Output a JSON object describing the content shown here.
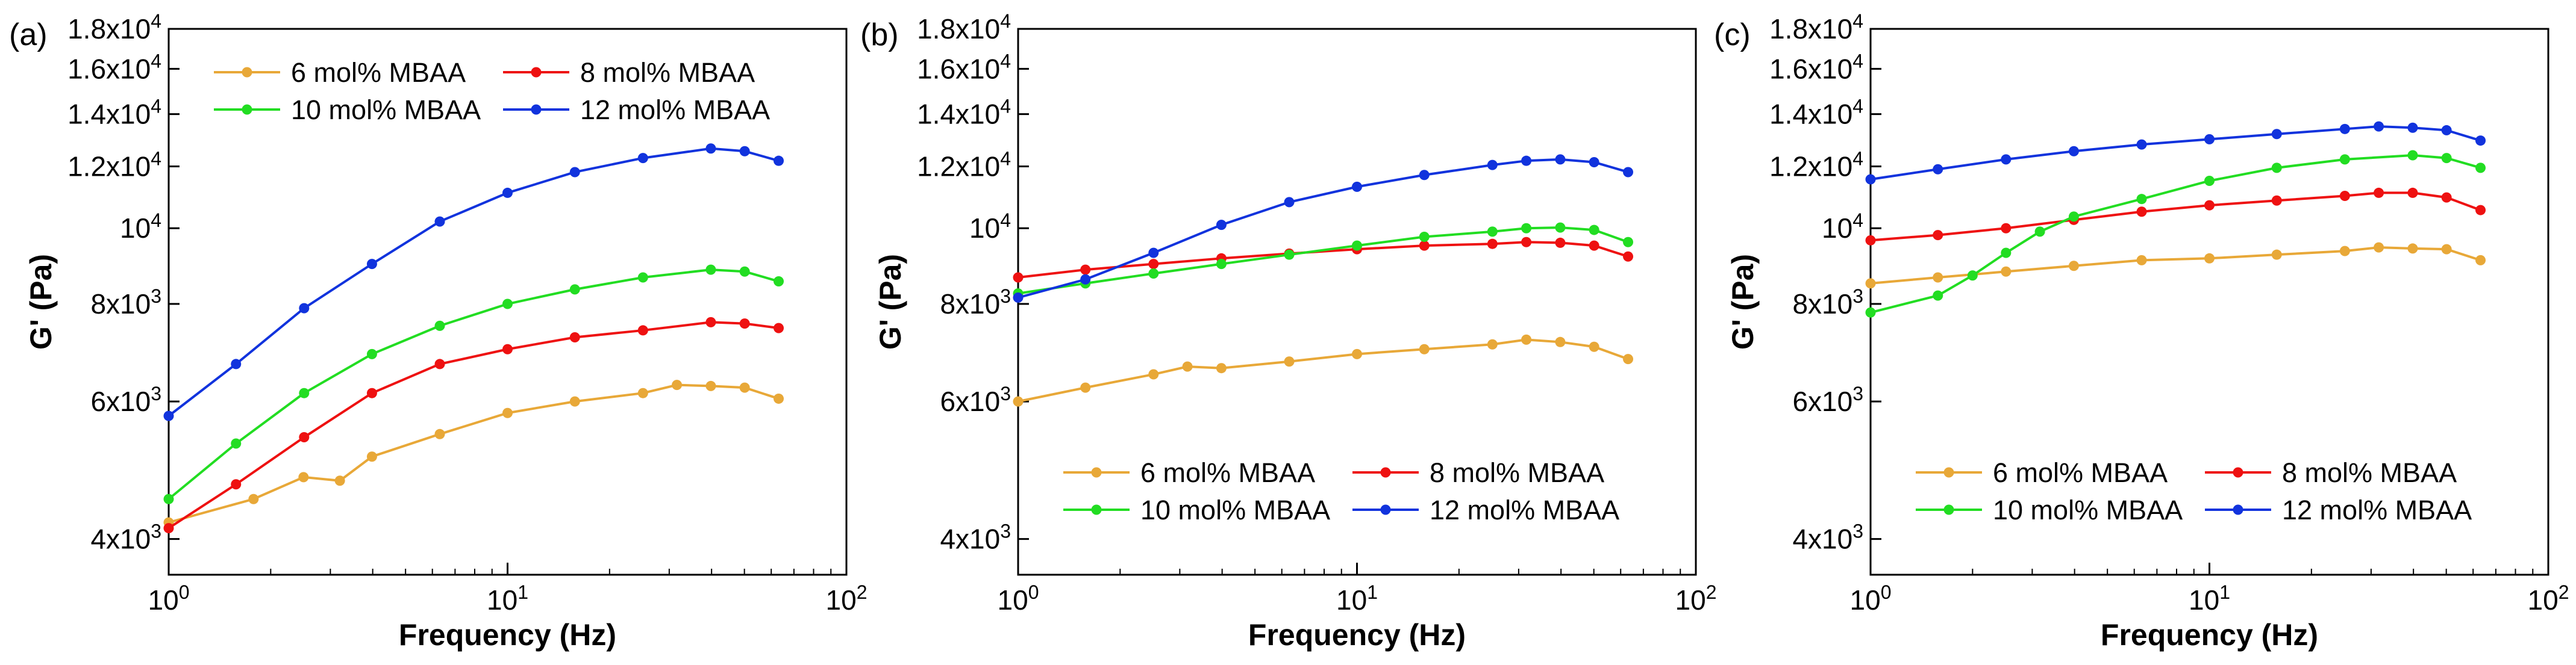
{
  "figure": {
    "panels": [
      {
        "id": "a",
        "label": "(a)"
      },
      {
        "id": "b",
        "label": "(b)"
      },
      {
        "id": "c",
        "label": "(c)"
      }
    ]
  },
  "chart_data": [
    {
      "type": "line",
      "panel_label": "(a)",
      "xlabel": "Frequency (Hz)",
      "ylabel": "G' (Pa)",
      "xscale": "log",
      "yscale": "log",
      "xlim": [
        1,
        100
      ],
      "ylim": [
        3600,
        18000
      ],
      "x_ticks": [
        {
          "value": 1,
          "base": "10",
          "exp": "0"
        },
        {
          "value": 10,
          "base": "10",
          "exp": "1"
        },
        {
          "value": 100,
          "base": "10",
          "exp": "2"
        }
      ],
      "y_ticks": [
        {
          "value": 4000,
          "base": "4x10",
          "exp": "3"
        },
        {
          "value": 6000,
          "base": "6x10",
          "exp": "3"
        },
        {
          "value": 8000,
          "base": "8x10",
          "exp": "3"
        },
        {
          "value": 10000,
          "base": "10",
          "exp": "4"
        },
        {
          "value": 12000,
          "base": "1.2x10",
          "exp": "4"
        },
        {
          "value": 14000,
          "base": "1.4x10",
          "exp": "4"
        },
        {
          "value": 16000,
          "base": "1.6x10",
          "exp": "4"
        },
        {
          "value": 18000,
          "base": "1.8x10",
          "exp": "4"
        }
      ],
      "legend_position": "top-left",
      "series": [
        {
          "name": "6 mol% MBAA",
          "color": "#E8A838",
          "x": [
            1,
            1.78,
            2.5,
            3.2,
            3.98,
            6.31,
            10,
            15.8,
            25.1,
            31.6,
            39.8,
            50.1,
            63.1
          ],
          "y": [
            4200,
            4500,
            4800,
            4750,
            5100,
            5450,
            5800,
            6000,
            6150,
            6300,
            6280,
            6250,
            6050
          ]
        },
        {
          "name": "8 mol% MBAA",
          "color": "#EE1111",
          "x": [
            1,
            1.58,
            2.51,
            3.98,
            6.31,
            10,
            15.8,
            25.1,
            39.8,
            50.1,
            63.1
          ],
          "y": [
            4130,
            4700,
            5400,
            6150,
            6700,
            7000,
            7250,
            7400,
            7580,
            7550,
            7450
          ]
        },
        {
          "name": "10 mol% MBAA",
          "color": "#22DD22",
          "x": [
            1,
            1.58,
            2.51,
            3.98,
            6.31,
            10,
            15.8,
            25.1,
            39.8,
            50.1,
            63.1
          ],
          "y": [
            4500,
            5300,
            6150,
            6900,
            7500,
            8000,
            8350,
            8650,
            8850,
            8800,
            8550
          ]
        },
        {
          "name": "12 mol% MBAA",
          "color": "#1133DD",
          "x": [
            1,
            1.58,
            2.51,
            3.98,
            6.31,
            10,
            15.8,
            25.1,
            39.8,
            50.1,
            63.1
          ],
          "y": [
            5750,
            6700,
            7900,
            9000,
            10200,
            11100,
            11800,
            12300,
            12650,
            12550,
            12200
          ]
        }
      ]
    },
    {
      "type": "line",
      "panel_label": "(b)",
      "xlabel": "Frequency (Hz)",
      "ylabel": "G' (Pa)",
      "xscale": "log",
      "yscale": "log",
      "xlim": [
        1,
        100
      ],
      "ylim": [
        3600,
        18000
      ],
      "x_ticks": [
        {
          "value": 1,
          "base": "10",
          "exp": "0"
        },
        {
          "value": 10,
          "base": "10",
          "exp": "1"
        },
        {
          "value": 100,
          "base": "10",
          "exp": "2"
        }
      ],
      "y_ticks": [
        {
          "value": 4000,
          "base": "4x10",
          "exp": "3"
        },
        {
          "value": 6000,
          "base": "6x10",
          "exp": "3"
        },
        {
          "value": 8000,
          "base": "8x10",
          "exp": "3"
        },
        {
          "value": 10000,
          "base": "10",
          "exp": "4"
        },
        {
          "value": 12000,
          "base": "1.2x10",
          "exp": "4"
        },
        {
          "value": 14000,
          "base": "1.4x10",
          "exp": "4"
        },
        {
          "value": 16000,
          "base": "1.6x10",
          "exp": "4"
        },
        {
          "value": 18000,
          "base": "1.8x10",
          "exp": "4"
        }
      ],
      "legend_position": "bottom-right",
      "series": [
        {
          "name": "6 mol% MBAA",
          "color": "#E8A838",
          "x": [
            1,
            1.58,
            2.51,
            3.16,
            3.98,
            6.31,
            10,
            15.8,
            25.1,
            31.6,
            39.8,
            50.1,
            63.1
          ],
          "y": [
            6000,
            6250,
            6500,
            6650,
            6620,
            6750,
            6900,
            7000,
            7100,
            7200,
            7150,
            7050,
            6800
          ]
        },
        {
          "name": "8 mol% MBAA",
          "color": "#EE1111",
          "x": [
            1,
            1.58,
            2.51,
            3.98,
            6.31,
            10,
            15.8,
            25.1,
            31.6,
            39.8,
            50.1,
            63.1
          ],
          "y": [
            8650,
            8850,
            9000,
            9150,
            9280,
            9400,
            9500,
            9550,
            9600,
            9580,
            9500,
            9200
          ]
        },
        {
          "name": "10 mol% MBAA",
          "color": "#22DD22",
          "x": [
            1,
            1.58,
            2.51,
            3.98,
            6.31,
            10,
            15.8,
            25.1,
            31.6,
            39.8,
            50.1,
            63.1
          ],
          "y": [
            8250,
            8500,
            8750,
            9000,
            9250,
            9500,
            9750,
            9900,
            10000,
            10020,
            9950,
            9600
          ]
        },
        {
          "name": "12 mol% MBAA",
          "color": "#1133DD",
          "x": [
            1,
            1.58,
            2.51,
            3.98,
            6.31,
            10,
            15.8,
            25.1,
            31.6,
            39.8,
            50.1,
            63.1
          ],
          "y": [
            8150,
            8600,
            9300,
            10100,
            10800,
            11300,
            11700,
            12050,
            12200,
            12250,
            12150,
            11800
          ]
        }
      ]
    },
    {
      "type": "line",
      "panel_label": "(c)",
      "xlabel": "Frequency (Hz)",
      "ylabel": "G' (Pa)",
      "xscale": "log",
      "yscale": "log",
      "xlim": [
        1,
        100
      ],
      "ylim": [
        3600,
        18000
      ],
      "x_ticks": [
        {
          "value": 1,
          "base": "10",
          "exp": "0"
        },
        {
          "value": 10,
          "base": "10",
          "exp": "1"
        },
        {
          "value": 100,
          "base": "10",
          "exp": "2"
        }
      ],
      "y_ticks": [
        {
          "value": 4000,
          "base": "4x10",
          "exp": "3"
        },
        {
          "value": 6000,
          "base": "6x10",
          "exp": "3"
        },
        {
          "value": 8000,
          "base": "8x10",
          "exp": "3"
        },
        {
          "value": 10000,
          "base": "10",
          "exp": "4"
        },
        {
          "value": 12000,
          "base": "1.2x10",
          "exp": "4"
        },
        {
          "value": 14000,
          "base": "1.4x10",
          "exp": "4"
        },
        {
          "value": 16000,
          "base": "1.6x10",
          "exp": "4"
        },
        {
          "value": 18000,
          "base": "1.8x10",
          "exp": "4"
        }
      ],
      "legend_position": "bottom-right",
      "series": [
        {
          "name": "6 mol% MBAA",
          "color": "#E8A838",
          "x": [
            1,
            1.58,
            2.51,
            3.98,
            6.31,
            10,
            15.8,
            25.1,
            31.6,
            39.8,
            50.1,
            63.1
          ],
          "y": [
            8500,
            8650,
            8800,
            8950,
            9100,
            9150,
            9250,
            9350,
            9450,
            9420,
            9400,
            9100
          ]
        },
        {
          "name": "8 mol% MBAA",
          "color": "#EE1111",
          "x": [
            1,
            1.58,
            2.51,
            3.98,
            6.31,
            10,
            15.8,
            25.1,
            31.6,
            39.8,
            50.1,
            63.1
          ],
          "y": [
            9650,
            9800,
            10000,
            10250,
            10500,
            10700,
            10850,
            11000,
            11100,
            11100,
            10950,
            10550
          ]
        },
        {
          "name": "10 mol% MBAA",
          "color": "#22DD22",
          "x": [
            1,
            1.58,
            2.0,
            2.51,
            3.16,
            3.98,
            6.31,
            10,
            15.8,
            25.1,
            39.8,
            50.1,
            63.1
          ],
          "y": [
            7800,
            8200,
            8700,
            9300,
            9900,
            10350,
            10900,
            11500,
            11950,
            12250,
            12400,
            12300,
            11950
          ]
        },
        {
          "name": "12 mol% MBAA",
          "color": "#1133DD",
          "x": [
            1,
            1.58,
            2.51,
            3.98,
            6.31,
            10,
            15.8,
            25.1,
            31.6,
            39.8,
            50.1,
            63.1
          ],
          "y": [
            11550,
            11900,
            12250,
            12550,
            12800,
            13000,
            13200,
            13400,
            13500,
            13450,
            13350,
            12950
          ]
        }
      ]
    }
  ]
}
